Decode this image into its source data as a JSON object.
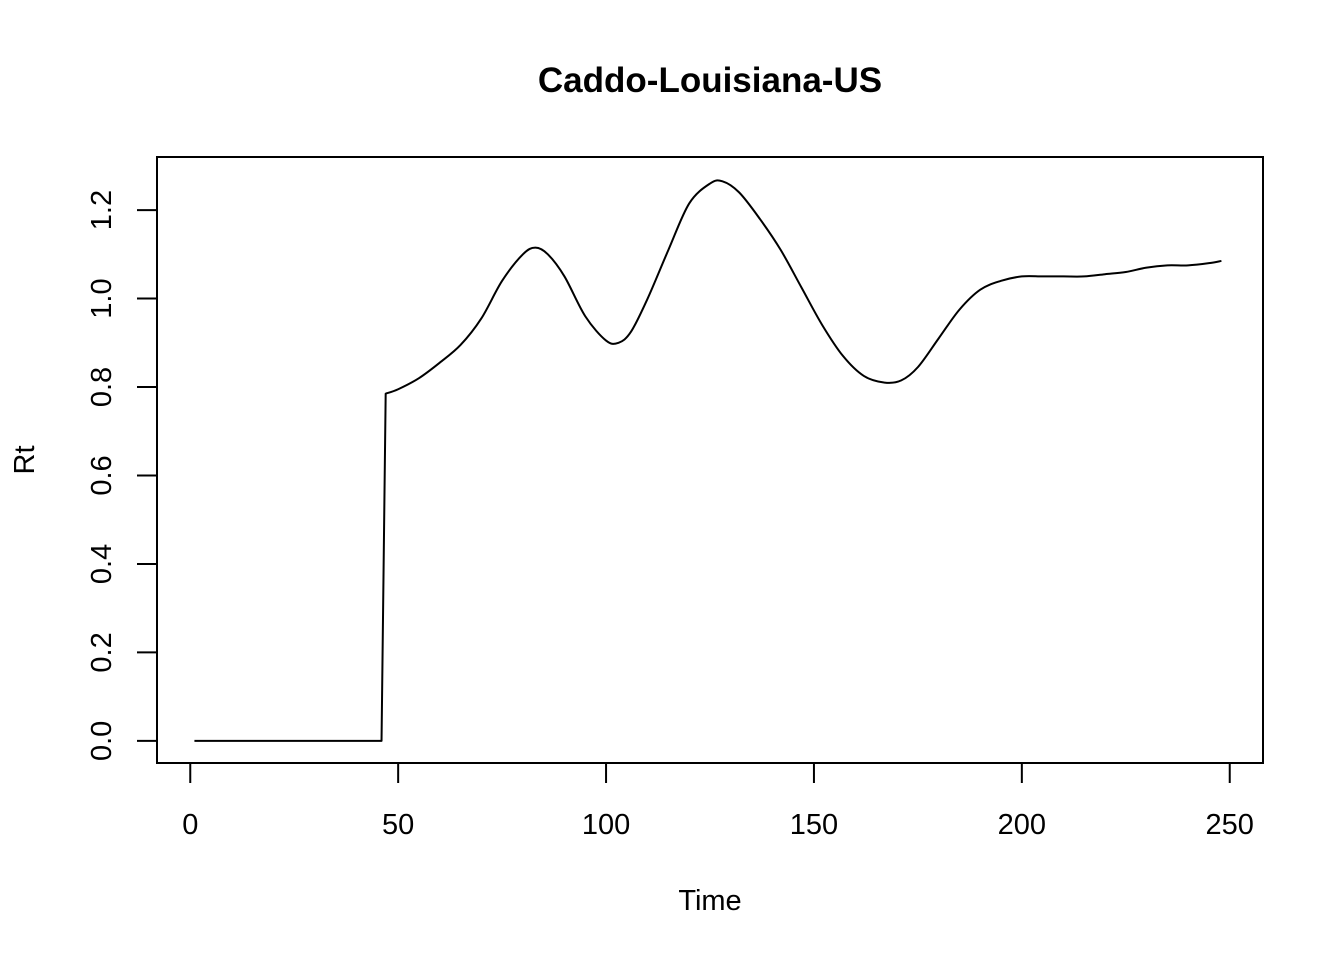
{
  "chart_data": {
    "type": "line",
    "title": "Caddo-Louisiana-US",
    "xlabel": "Time",
    "ylabel": "Rt",
    "xlim": [
      -8,
      258
    ],
    "ylim": [
      -0.05,
      1.32
    ],
    "xticks": [
      0,
      50,
      100,
      150,
      200,
      250
    ],
    "yticks": [
      0.0,
      0.2,
      0.4,
      0.6,
      0.8,
      1.0,
      1.2
    ],
    "xtick_labels": [
      "0",
      "50",
      "100",
      "150",
      "200",
      "250"
    ],
    "ytick_labels": [
      "0.0",
      "0.2",
      "0.4",
      "0.6",
      "0.8",
      "1.0",
      "1.2"
    ],
    "grid": false,
    "legend": "none",
    "series": [
      {
        "color": "#000000",
        "x": [
          1,
          10,
          20,
          30,
          40,
          46,
          47,
          50,
          55,
          60,
          65,
          70,
          75,
          80,
          83,
          86,
          90,
          95,
          100,
          103,
          106,
          110,
          115,
          120,
          125,
          128,
          132,
          137,
          142,
          147,
          152,
          157,
          162,
          167,
          171,
          175,
          180,
          185,
          190,
          195,
          200,
          205,
          210,
          215,
          220,
          225,
          230,
          235,
          240,
          245,
          248
        ],
        "y": [
          0.0,
          0.0,
          0.0,
          0.0,
          0.0,
          0.0,
          0.785,
          0.795,
          0.82,
          0.855,
          0.895,
          0.955,
          1.04,
          1.1,
          1.115,
          1.1,
          1.05,
          0.96,
          0.905,
          0.9,
          0.925,
          1.0,
          1.11,
          1.215,
          1.26,
          1.265,
          1.24,
          1.18,
          1.11,
          1.025,
          0.94,
          0.87,
          0.825,
          0.81,
          0.815,
          0.845,
          0.91,
          0.975,
          1.02,
          1.04,
          1.05,
          1.05,
          1.05,
          1.05,
          1.055,
          1.06,
          1.07,
          1.075,
          1.075,
          1.08,
          1.085
        ]
      }
    ]
  }
}
